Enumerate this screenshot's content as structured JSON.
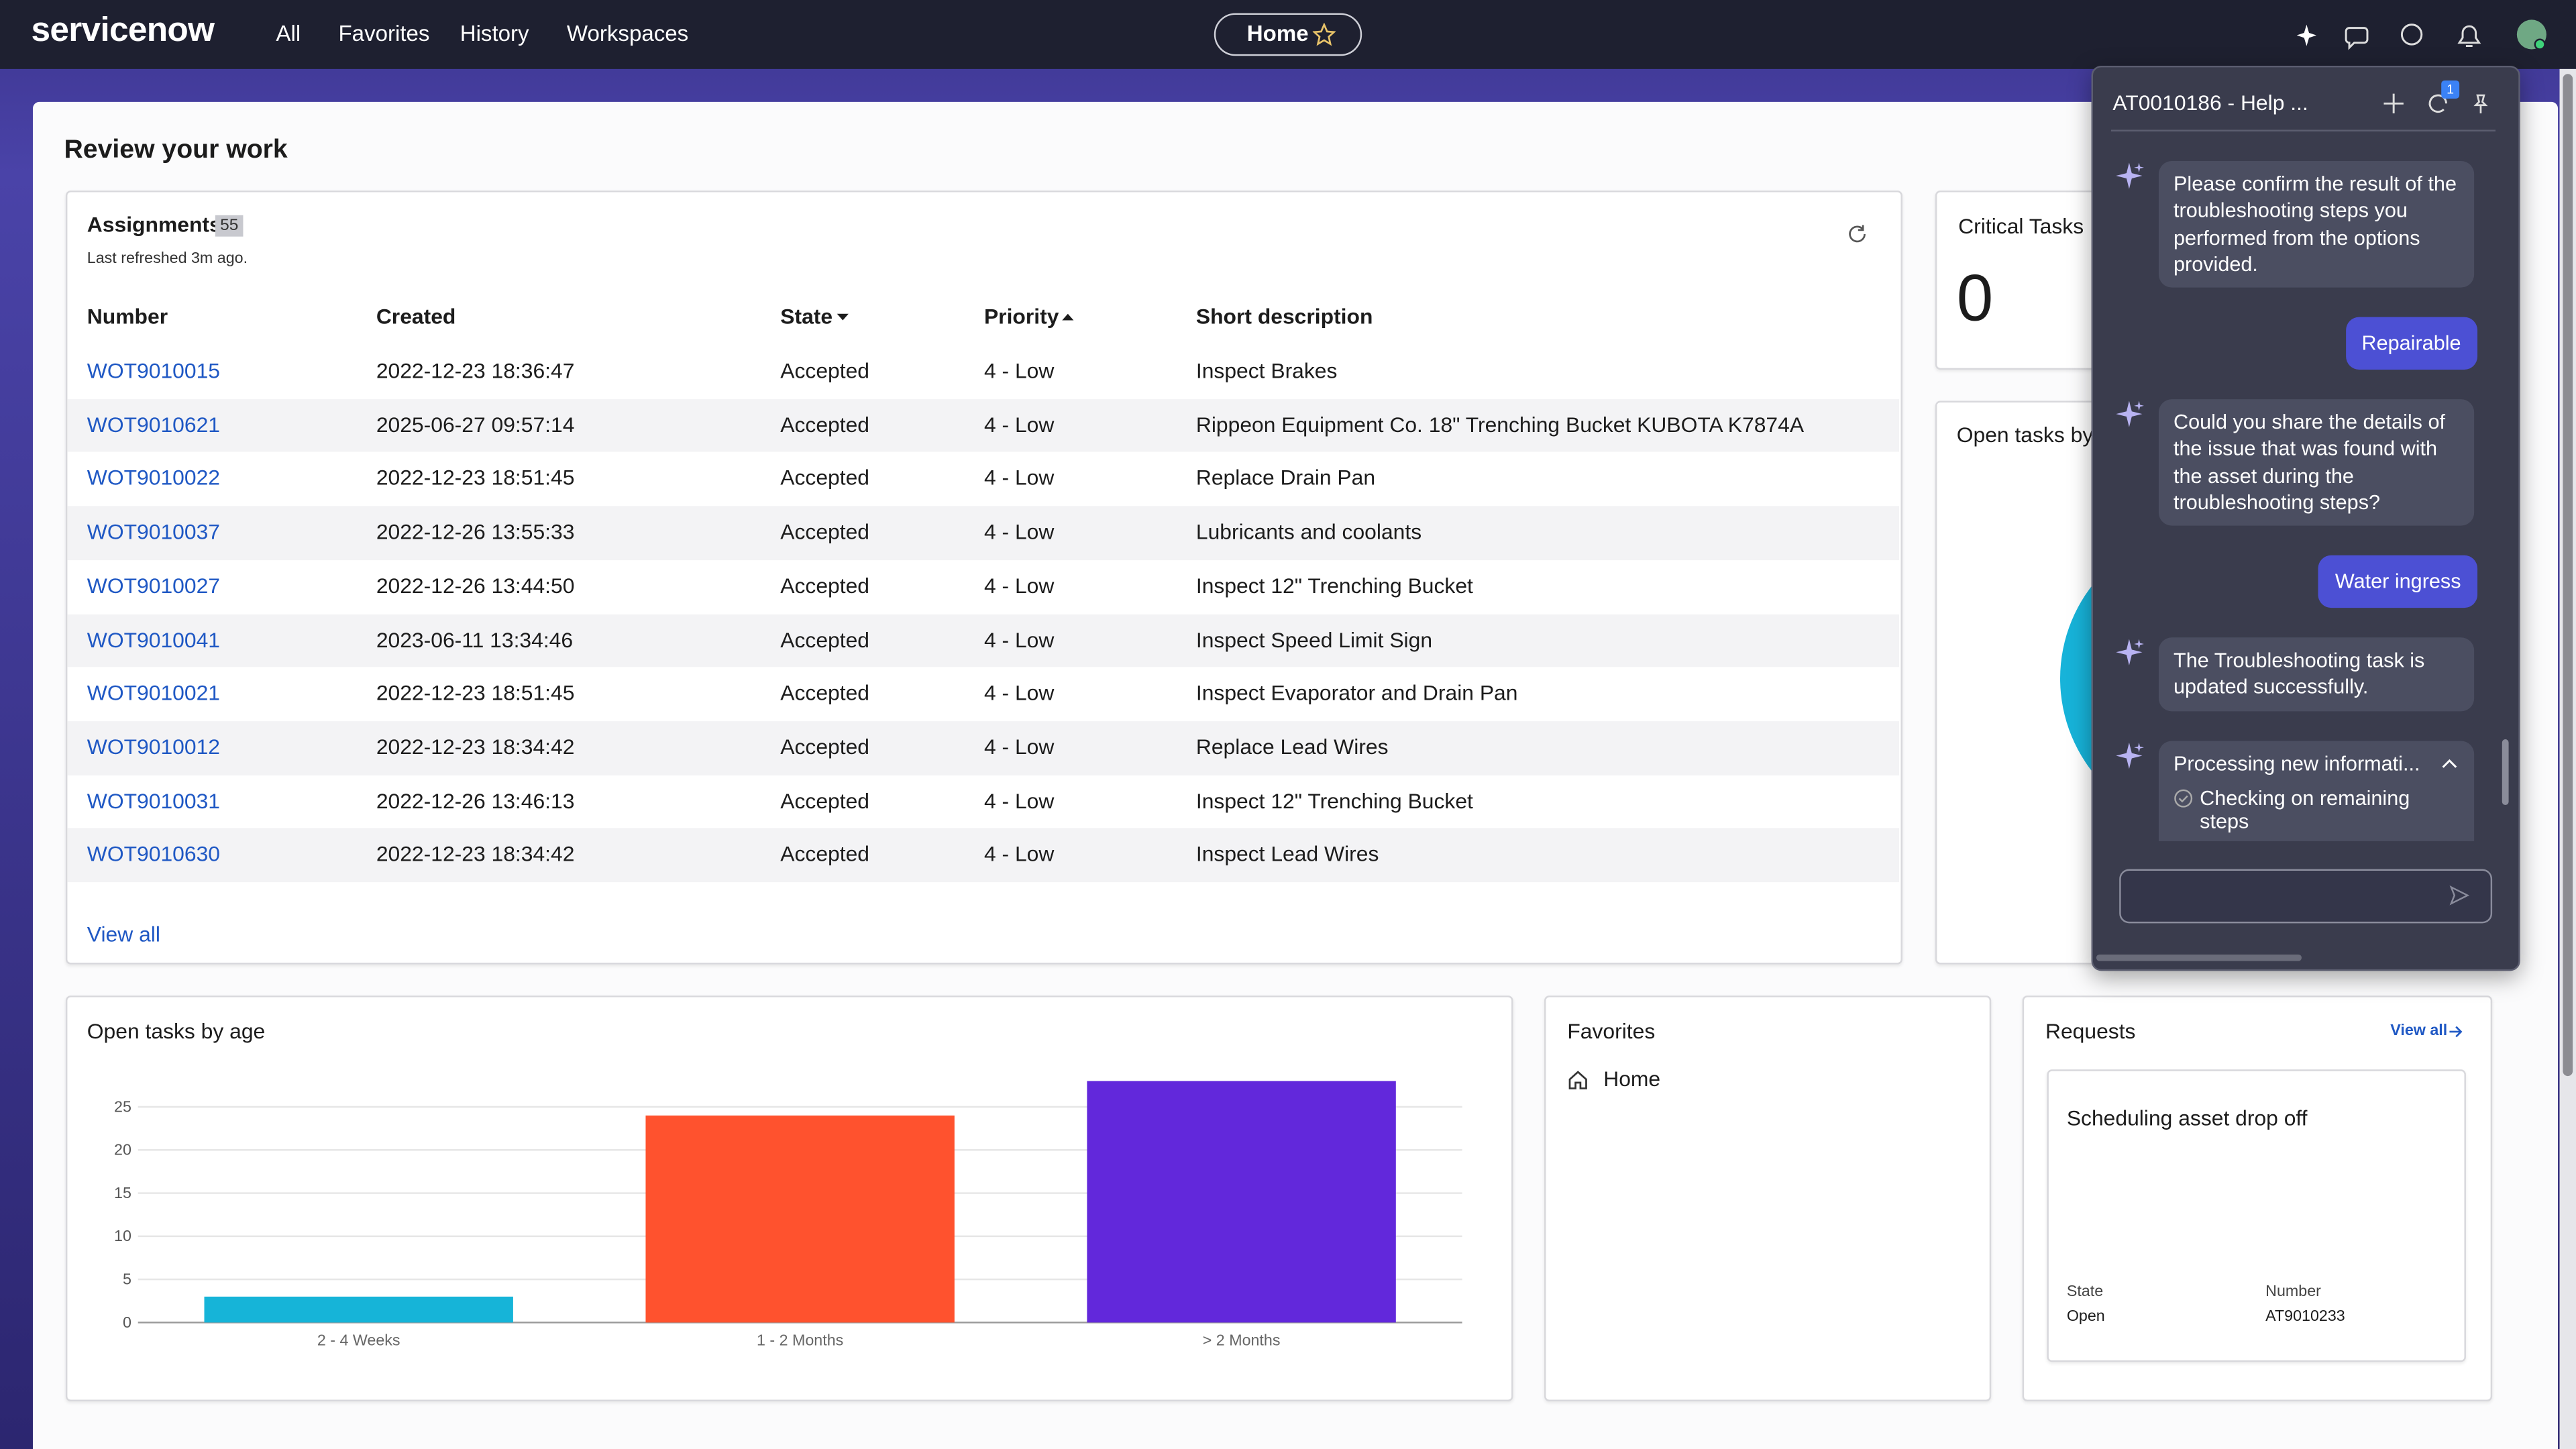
{
  "nav": {
    "brand": "servicenow",
    "links": [
      "All",
      "Favorites",
      "History",
      "Workspaces"
    ],
    "home": "Home"
  },
  "page_title": "Review your work",
  "assignments": {
    "title": "Assignments",
    "count": 55,
    "refreshed": "Last refreshed 3m ago.",
    "columns": [
      "Number",
      "Created",
      "State",
      "Priority",
      "Short description"
    ],
    "rows": [
      [
        "WOT9010015",
        "2022-12-23 18:36:47",
        "Accepted",
        "4 - Low",
        "Inspect Brakes"
      ],
      [
        "WOT9010621",
        "2025-06-27 09:57:14",
        "Accepted",
        "4 - Low",
        "Rippeon Equipment Co. 18\" Trenching Bucket KUBOTA K7874A"
      ],
      [
        "WOT9010022",
        "2022-12-23 18:51:45",
        "Accepted",
        "4 - Low",
        "Replace Drain Pan"
      ],
      [
        "WOT9010037",
        "2022-12-26 13:55:33",
        "Accepted",
        "4 - Low",
        "Lubricants and coolants"
      ],
      [
        "WOT9010027",
        "2022-12-26 13:44:50",
        "Accepted",
        "4 - Low",
        "Inspect 12\" Trenching Bucket"
      ],
      [
        "WOT9010041",
        "2023-06-11 13:34:46",
        "Accepted",
        "4 - Low",
        "Inspect Speed Limit Sign"
      ],
      [
        "WOT9010021",
        "2022-12-23 18:51:45",
        "Accepted",
        "4 - Low",
        "Inspect Evaporator and Drain Pan"
      ],
      [
        "WOT9010012",
        "2022-12-23 18:34:42",
        "Accepted",
        "4 - Low",
        "Replace Lead Wires"
      ],
      [
        "WOT9010031",
        "2022-12-26 13:46:13",
        "Accepted",
        "4 - Low",
        "Inspect 12\" Trenching Bucket"
      ],
      [
        "WOT9010630",
        "2022-12-23 18:34:42",
        "Accepted",
        "4 - Low",
        "Inspect Lead Wires"
      ]
    ],
    "view_all": "View all"
  },
  "critical_tasks": {
    "title": "Critical Tasks",
    "value": 0
  },
  "open_tasks_by": {
    "title": "Open tasks by"
  },
  "age_chart": {
    "type": "bar",
    "title": "Open tasks by age",
    "categories": [
      "2 - 4 Weeks",
      "1 - 2 Months",
      "> 2 Months"
    ],
    "values": [
      3,
      24,
      28
    ],
    "colors": [
      "#16b4d8",
      "#ff522e",
      "#6228db"
    ],
    "ylim": [
      0,
      28
    ],
    "yticks": [
      0,
      5,
      10,
      15,
      20,
      25
    ],
    "grid": true
  },
  "favorites": {
    "title": "Favorites",
    "items": [
      "Home"
    ]
  },
  "requests": {
    "title": "Requests",
    "view_all": "View all",
    "card": {
      "title": "Scheduling asset drop off",
      "fields": [
        {
          "label": "State",
          "value": "Open"
        },
        {
          "label": "Number",
          "value": "AT9010233"
        }
      ]
    }
  },
  "assistant": {
    "title": "AT0010186 - Help ...",
    "badge": 1,
    "messages": [
      {
        "from": "assistant",
        "text": "Please confirm the result of the troubleshooting steps you performed from the options provided."
      },
      {
        "from": "user",
        "text": "Repairable"
      },
      {
        "from": "assistant",
        "text": "Could you share the details of the issue that was found with the asset during the troubleshooting steps?"
      },
      {
        "from": "user",
        "text": "Water ingress"
      },
      {
        "from": "assistant",
        "text": "The Troubleshooting task is updated successfully."
      }
    ],
    "processing": {
      "title": "Processing new informati...",
      "step": "Checking on remaining steps"
    }
  }
}
